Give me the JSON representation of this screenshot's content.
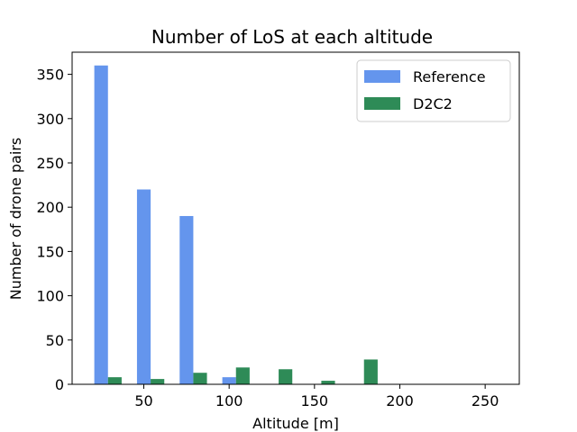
{
  "chart_data": {
    "type": "bar",
    "title": "Number of LoS at each altitude",
    "xlabel": "Altitude [m]",
    "ylabel": "Number of drone pairs",
    "xlim": [
      8,
      270
    ],
    "ylim": [
      0,
      375
    ],
    "xticks": [
      50,
      100,
      150,
      200,
      250
    ],
    "yticks": [
      0,
      50,
      100,
      150,
      200,
      250,
      300,
      350
    ],
    "bar_width": 8,
    "grid": false,
    "legend_placement": "top-right",
    "series": [
      {
        "name": "Reference",
        "color": "#6495ED",
        "x": [
          25,
          50,
          75,
          100
        ],
        "values": [
          360,
          220,
          190,
          8
        ]
      },
      {
        "name": "D2C2",
        "color": "#2E8B57",
        "x": [
          33,
          58,
          83,
          108,
          133,
          158,
          183
        ],
        "values": [
          8,
          6,
          13,
          19,
          17,
          4,
          28
        ]
      }
    ]
  }
}
